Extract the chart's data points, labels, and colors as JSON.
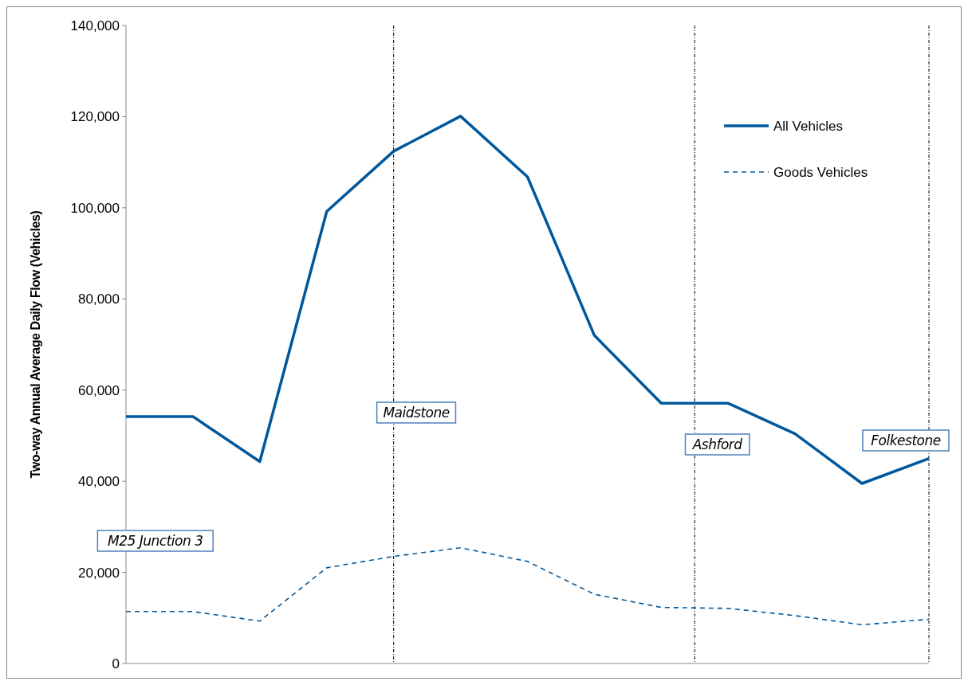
{
  "chart_data": {
    "type": "line",
    "ylabel": "Two-way Annual Average Daily Flow (Vehicles)",
    "ylim": [
      0,
      140000
    ],
    "yticks": [
      {
        "value": 0,
        "label": "0"
      },
      {
        "value": 20000,
        "label": "20,000"
      },
      {
        "value": 40000,
        "label": "40,000"
      },
      {
        "value": 60000,
        "label": "60,000"
      },
      {
        "value": 80000,
        "label": "80,000"
      },
      {
        "value": 100000,
        "label": "100,000"
      },
      {
        "value": 120000,
        "label": "120,000"
      },
      {
        "value": 140000,
        "label": "140,000"
      }
    ],
    "tick_labels": "y",
    "grid": false,
    "legend": "top right",
    "categories": [
      null,
      null,
      null,
      null,
      null,
      null,
      null,
      null,
      null,
      null,
      null,
      null,
      null
    ],
    "series": [
      {
        "name": "All Vehicles",
        "color": "#00589c",
        "line_style": "solid",
        "values": [
          54200,
          54200,
          44300,
          99200,
          112400,
          120100,
          106800,
          72000,
          57100,
          57100,
          50400,
          39500,
          45000
        ]
      },
      {
        "name": "Goods Vehicles",
        "color": "#00589c",
        "line_style": "dashed",
        "values": [
          11400,
          11400,
          9300,
          21000,
          23500,
          25400,
          22400,
          15200,
          12300,
          12100,
          10500,
          8500,
          9700
        ]
      }
    ],
    "annotations": [
      "M25 Junction 3",
      "Maidstone",
      "Ashford",
      "Folkestone"
    ]
  }
}
